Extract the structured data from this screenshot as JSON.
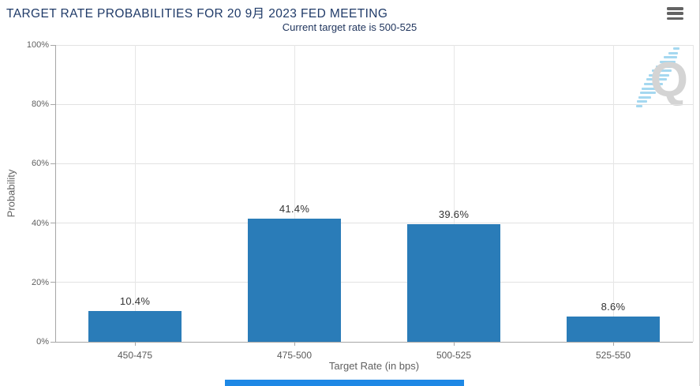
{
  "header": {
    "menu_icon": "hamburger-icon"
  },
  "watermark": {
    "letter": "Q"
  },
  "chart_data": {
    "type": "bar",
    "title": "TARGET RATE PROBABILITIES FOR 20 9月 2023 FED MEETING",
    "subtitle": "Current target rate is 500-525",
    "categories": [
      "450-475",
      "475-500",
      "500-525",
      "525-550"
    ],
    "values": [
      10.4,
      41.4,
      39.6,
      8.6
    ],
    "value_labels": [
      "10.4%",
      "41.4%",
      "39.6%",
      "8.6%"
    ],
    "xlabel": "Target Rate (in bps)",
    "ylabel": "Probability",
    "ylim": [
      0,
      100
    ],
    "ytick_values": [
      0,
      20,
      40,
      60,
      80,
      100
    ],
    "ytick_labels": [
      "0%",
      "20%",
      "40%",
      "60%",
      "80%",
      "100%"
    ],
    "grid": true,
    "legend": "none"
  },
  "colors": {
    "bar": "#2a7cb8",
    "title_text": "#1f3a68",
    "subtitle_text": "#21365e",
    "gridline": "#e2e2e2",
    "axis_line": "#a6a6a6",
    "tick_label": "#606060",
    "value_label": "#333333",
    "bottom_bar": "#1e88e5",
    "watermark_letter": "#d4d4d4",
    "watermark_stripes": "#a5d8f0"
  }
}
